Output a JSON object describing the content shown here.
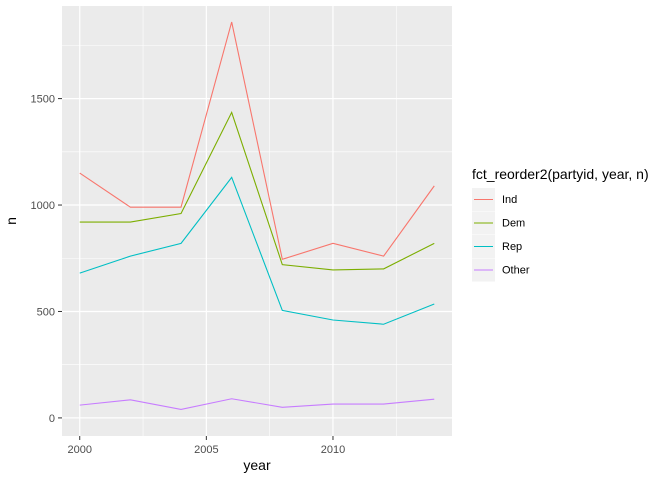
{
  "chart_data": {
    "type": "line",
    "xlabel": "year",
    "ylabel": "n",
    "x": [
      2000,
      2002,
      2004,
      2006,
      2008,
      2010,
      2012,
      2014
    ],
    "xlim": [
      1999.3,
      2014.7
    ],
    "ylim": [
      -85,
      1935
    ],
    "x_ticks": [
      2000,
      2005,
      2010
    ],
    "y_ticks": [
      0,
      500,
      1000,
      1500
    ],
    "grid": true,
    "legend": {
      "title": "fct_reorder2(partyid, year, n)",
      "position": "right"
    },
    "series": [
      {
        "name": "Ind",
        "color": "#F8766D",
        "values": [
          1150,
          990,
          990,
          1860,
          745,
          820,
          760,
          1090
        ]
      },
      {
        "name": "Dem",
        "color": "#7CAE00",
        "values": [
          920,
          920,
          960,
          1435,
          720,
          695,
          700,
          820
        ]
      },
      {
        "name": "Rep",
        "color": "#00BFC4",
        "values": [
          680,
          760,
          820,
          1130,
          505,
          460,
          440,
          535
        ]
      },
      {
        "name": "Other",
        "color": "#C77CFF",
        "values": [
          60,
          85,
          40,
          90,
          50,
          65,
          65,
          88
        ]
      }
    ]
  }
}
